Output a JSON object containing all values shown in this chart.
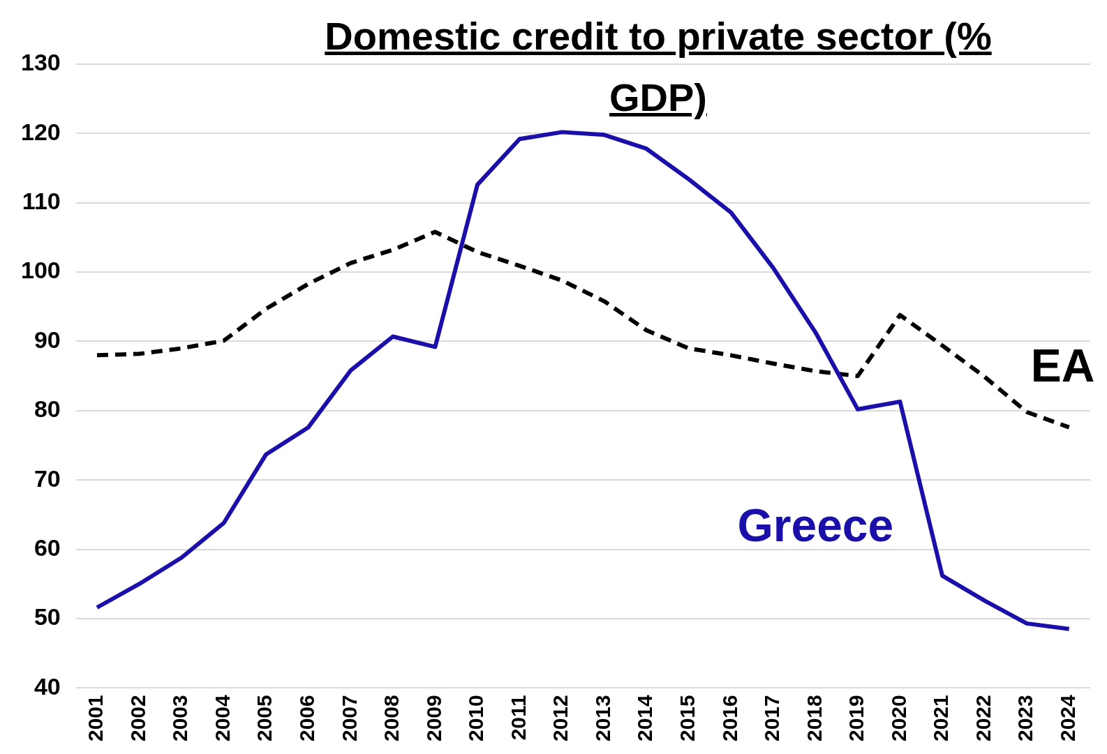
{
  "chart_data": {
    "type": "line",
    "title": "Domestic credit to private sector (% GDP)",
    "categories": [
      "2001",
      "2002",
      "2003",
      "2004",
      "2005",
      "2006",
      "2007",
      "2008",
      "2009",
      "2010",
      "2011",
      "2012",
      "2013",
      "2014",
      "2015",
      "2016",
      "2017",
      "2018",
      "2019",
      "2020",
      "2021",
      "2022",
      "2023",
      "2024"
    ],
    "series": [
      {
        "name": "Greece",
        "color": "#1a0fa8",
        "line_style": "solid",
        "values": [
          51.6,
          55.0,
          58.8,
          63.8,
          73.7,
          77.6,
          85.8,
          90.7,
          89.2,
          112.6,
          119.2,
          120.2,
          119.8,
          117.8,
          113.4,
          108.6,
          100.6,
          91.3,
          80.2,
          81.3,
          56.2,
          52.6,
          49.3,
          48.5
        ]
      },
      {
        "name": "EA",
        "color": "#000000",
        "line_style": "dashed",
        "values": [
          88.0,
          88.2,
          89.0,
          90.1,
          94.7,
          98.3,
          101.3,
          103.2,
          105.8,
          102.9,
          100.9,
          98.8,
          95.8,
          91.6,
          89.0,
          88.0,
          86.8,
          85.7,
          85.0,
          93.8,
          89.4,
          84.9,
          79.8,
          77.6
        ]
      }
    ],
    "ylim": [
      40,
      130
    ],
    "yticks": [
      40,
      50,
      60,
      70,
      80,
      90,
      100,
      110,
      120,
      130
    ],
    "grid": "y",
    "legend": false,
    "marker": "none"
  }
}
